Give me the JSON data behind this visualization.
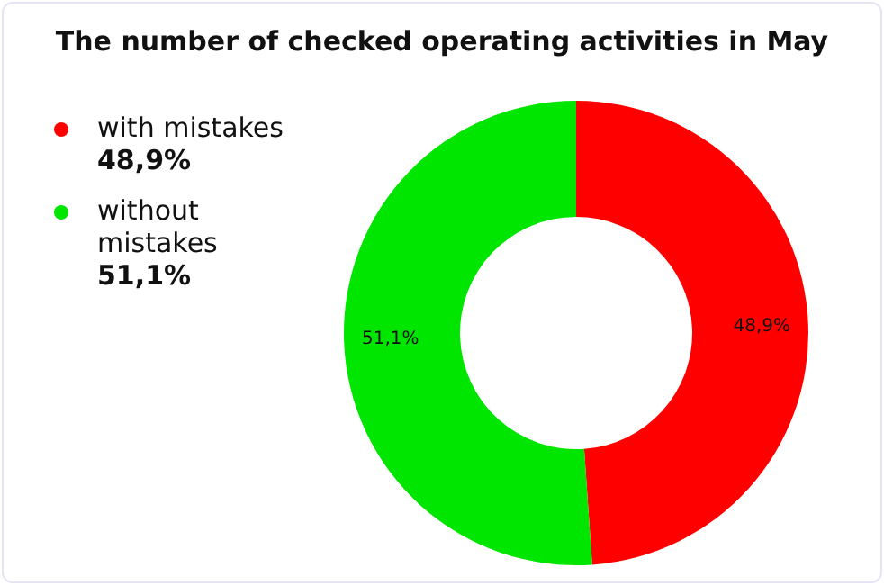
{
  "chart_data": {
    "type": "donut",
    "title": "The number of checked operating activities in May",
    "categories": [
      "with mistakes",
      "without mistakes"
    ],
    "values": [
      48.9,
      51.1
    ],
    "colors": [
      "#ff0000",
      "#00e600"
    ],
    "value_labels": [
      "48,9%",
      "51,1%"
    ],
    "legend": "left"
  }
}
